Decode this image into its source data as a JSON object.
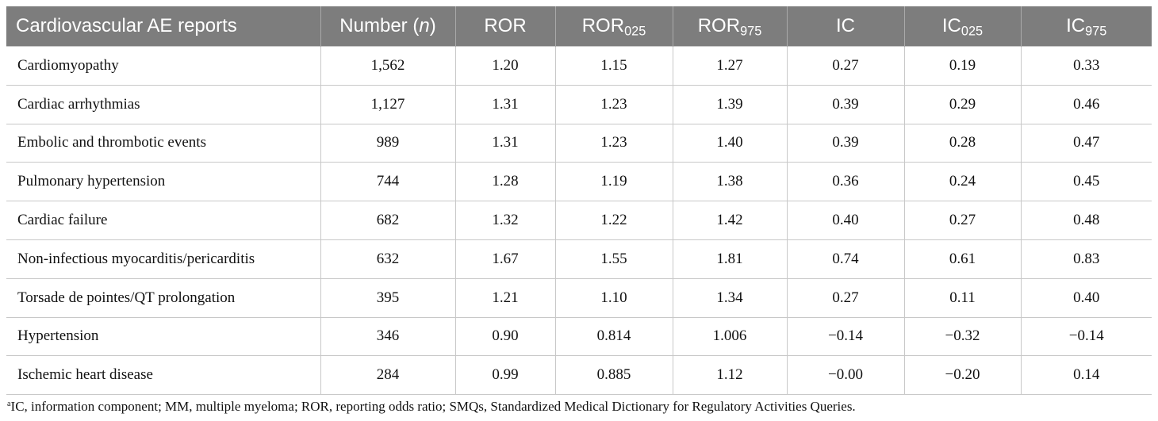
{
  "table": {
    "headers": [
      {
        "main": "Cardiovascular AE reports",
        "sub": ""
      },
      {
        "main": "Number (",
        "italic": "n",
        "tail": ")"
      },
      {
        "main": "ROR",
        "sub": ""
      },
      {
        "main": "ROR",
        "sub": "025"
      },
      {
        "main": "ROR",
        "sub": "975"
      },
      {
        "main": "IC",
        "sub": ""
      },
      {
        "main": "IC",
        "sub": "025"
      },
      {
        "main": "IC",
        "sub": "975"
      }
    ],
    "rows": [
      [
        "Cardiomyopathy",
        "1,562",
        "1.20",
        "1.15",
        "1.27",
        "0.27",
        "0.19",
        "0.33"
      ],
      [
        "Cardiac arrhythmias",
        "1,127",
        "1.31",
        "1.23",
        "1.39",
        "0.39",
        "0.29",
        "0.46"
      ],
      [
        "Embolic and thrombotic events",
        "989",
        "1.31",
        "1.23",
        "1.40",
        "0.39",
        "0.28",
        "0.47"
      ],
      [
        "Pulmonary hypertension",
        "744",
        "1.28",
        "1.19",
        "1.38",
        "0.36",
        "0.24",
        "0.45"
      ],
      [
        "Cardiac failure",
        "682",
        "1.32",
        "1.22",
        "1.42",
        "0.40",
        "0.27",
        "0.48"
      ],
      [
        "Non-infectious myocarditis/pericarditis",
        "632",
        "1.67",
        "1.55",
        "1.81",
        "0.74",
        "0.61",
        "0.83"
      ],
      [
        "Torsade de pointes/QT prolongation",
        "395",
        "1.21",
        "1.10",
        "1.34",
        "0.27",
        "0.11",
        "0.40"
      ],
      [
        "Hypertension",
        "346",
        "0.90",
        "0.814",
        "1.006",
        "−0.14",
        "−0.32",
        "−0.14"
      ],
      [
        "Ischemic heart disease",
        "284",
        "0.99",
        "0.885",
        "1.12",
        "−0.00",
        "−0.20",
        "0.14"
      ]
    ]
  },
  "footnote": {
    "marker": "a",
    "text": "IC, information component; MM, multiple myeloma; ROR, reporting odds ratio; SMQs, Standardized Medical Dictionary for Regulatory Activities Queries."
  }
}
